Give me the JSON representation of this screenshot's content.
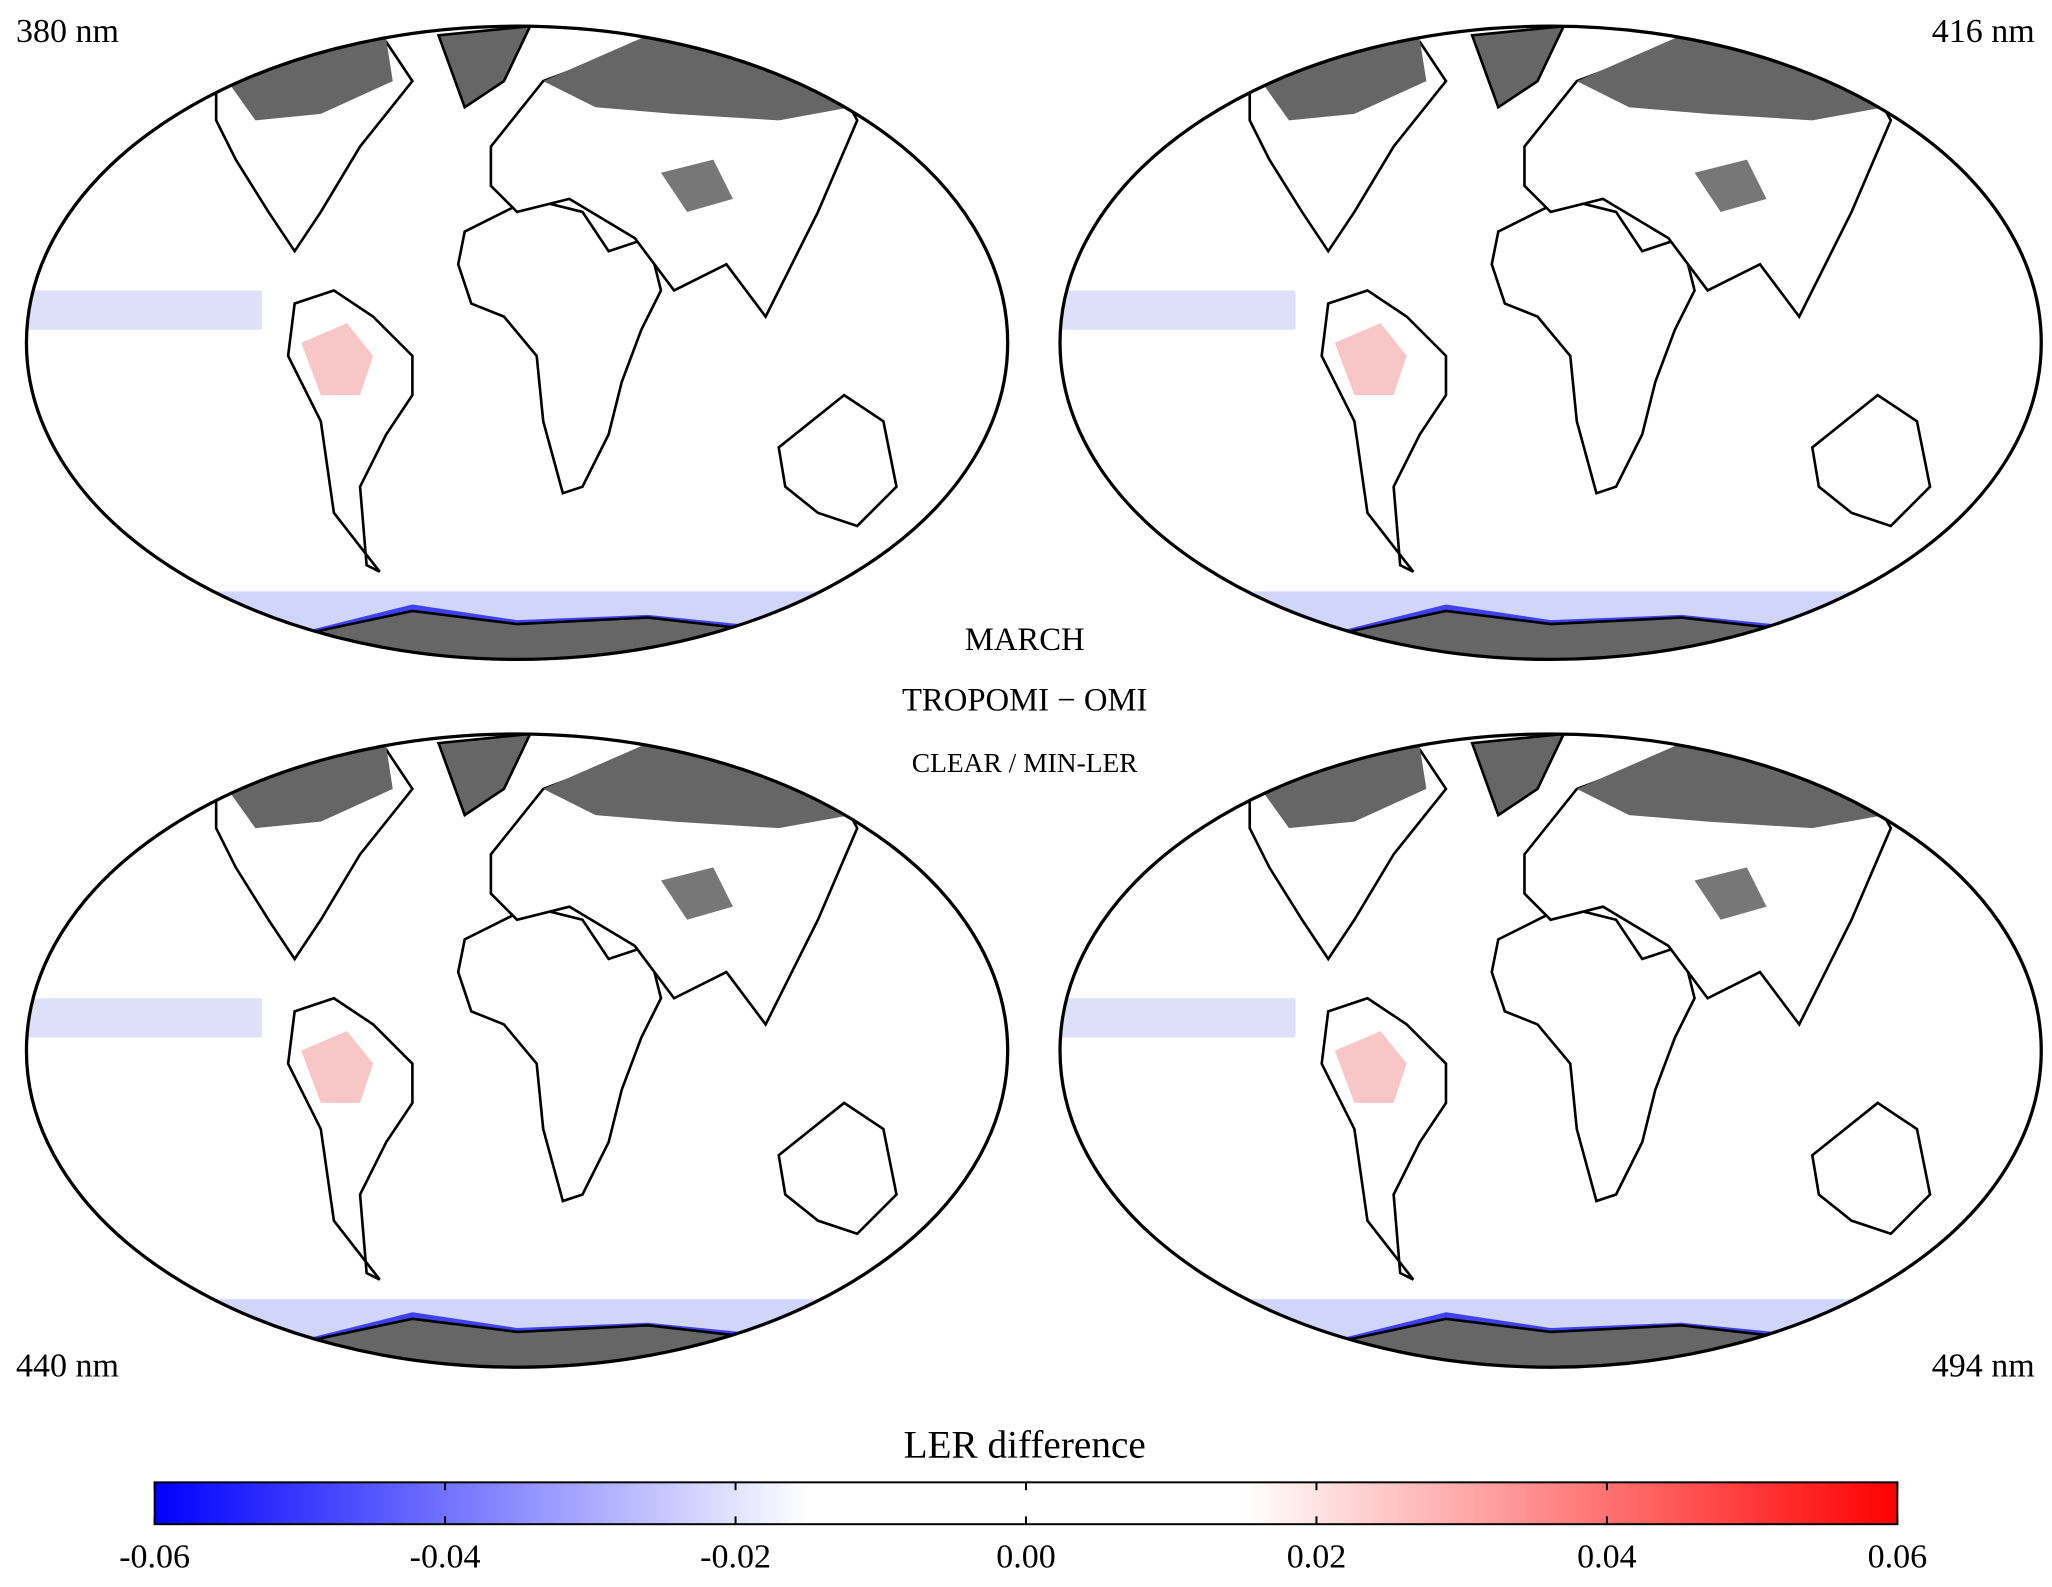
{
  "panels": [
    {
      "label": "380 nm"
    },
    {
      "label": "416 nm"
    },
    {
      "label": "440 nm"
    },
    {
      "label": "494 nm"
    }
  ],
  "center_text": {
    "month": "MARCH",
    "comparison": "TROPOMI − OMI",
    "scene": "CLEAR / MIN-LER"
  },
  "colorbar": {
    "title": "LER difference",
    "lim": [
      -0.06,
      0.06
    ],
    "ticks": [
      -0.06,
      -0.04,
      -0.02,
      {
        "value": 0,
        "label": "0.00"
      },
      0.02,
      0.04,
      0.06
    ],
    "colormap": [
      {
        "value": -0.06,
        "color": "#0000ff"
      },
      {
        "value": -0.015,
        "color": "#ffffff"
      },
      {
        "value": 0.015,
        "color": "#ffffff"
      },
      {
        "value": 0.06,
        "color": "#ff0000"
      }
    ]
  }
}
